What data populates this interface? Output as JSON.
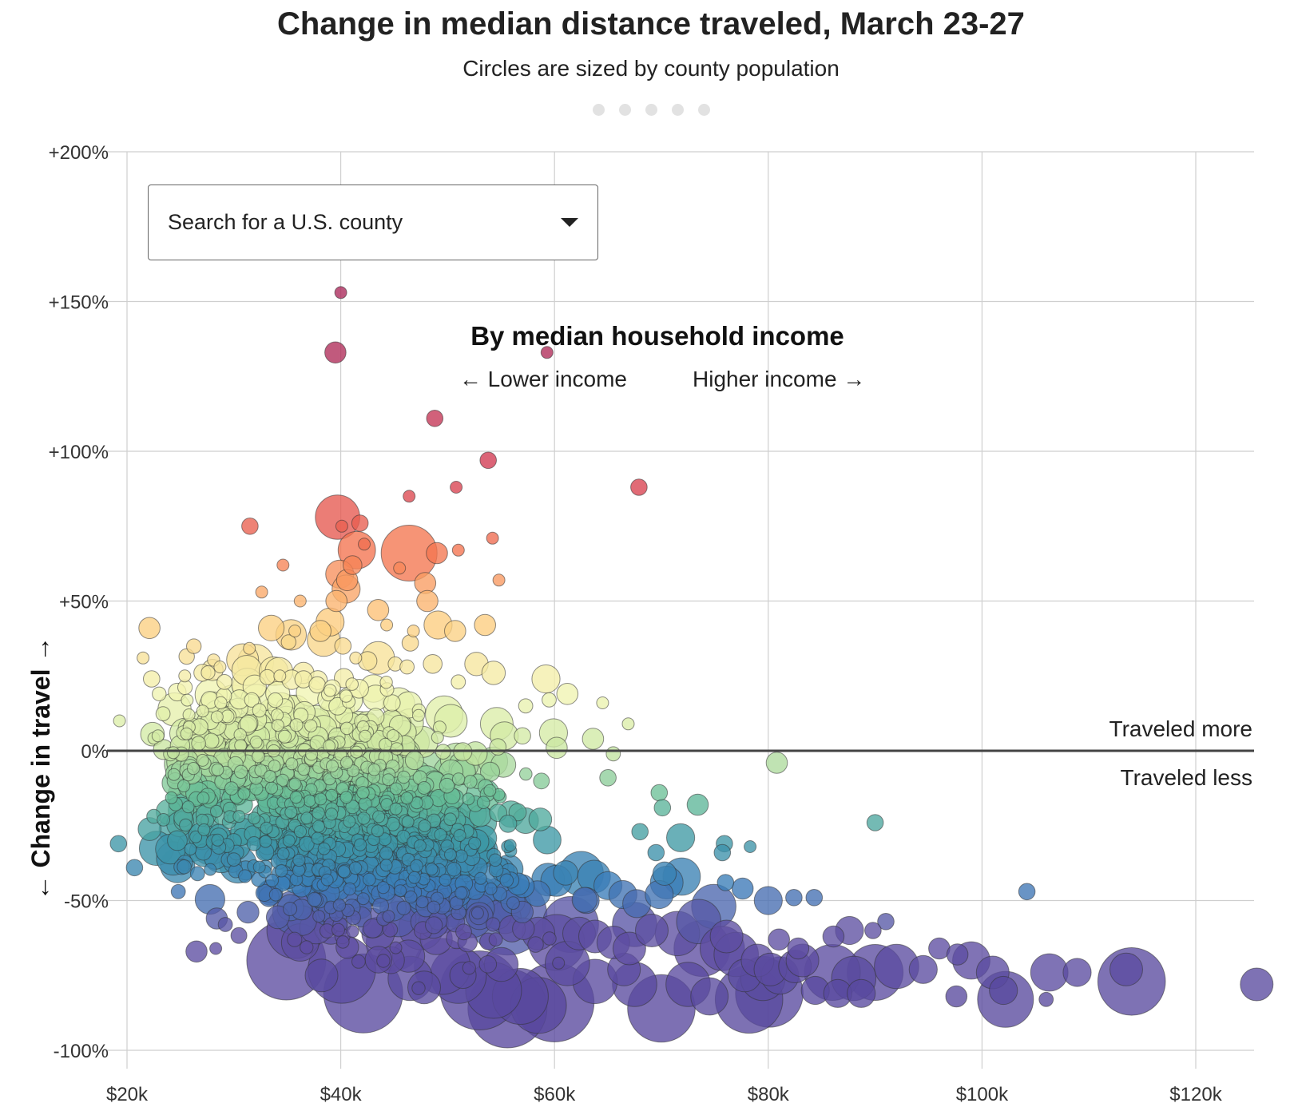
{
  "header": {
    "title": "Change in median distance traveled, March 23-27",
    "subtitle": "Circles are sized by county population",
    "pager_count": 5
  },
  "search": {
    "placeholder": "Search for a U.S. county"
  },
  "annotations": {
    "income_heading": "By median household income",
    "lower_income": "← Lower income",
    "higher_income": "Higher income →",
    "traveled_more": "Traveled more",
    "traveled_less": "Traveled less"
  },
  "chart_data": {
    "type": "scatter",
    "title": "Change in median distance traveled, March 23-27",
    "subtitle": "Circles are sized by county population",
    "xlabel": "",
    "ylabel": "← Change in travel →",
    "xlim": [
      19000,
      126000
    ],
    "ylim": [
      -105,
      200
    ],
    "x_ticks": [
      20000,
      40000,
      60000,
      80000,
      100000,
      120000
    ],
    "x_tick_labels": [
      "$20k",
      "$40k",
      "$60k",
      "$80k",
      "$100k",
      "$120k"
    ],
    "y_ticks": [
      200,
      150,
      100,
      50,
      0,
      -50,
      -100
    ],
    "y_tick_labels": [
      "+200%",
      "+150%",
      "+100%",
      "+50%",
      "0%",
      "-50%",
      "-100%"
    ],
    "grid": true,
    "size_encoding": "county population",
    "color_encoding": "change in travel (purple = less, red = more)",
    "points": [
      [
        40000,
        153,
        0.1
      ],
      [
        39500,
        133,
        0.5
      ],
      [
        59300,
        133,
        0.1
      ],
      [
        48800,
        111,
        0.3
      ],
      [
        53800,
        97,
        0.3
      ],
      [
        67900,
        88,
        0.3
      ],
      [
        50800,
        88,
        0.1
      ],
      [
        46400,
        85,
        0.1
      ],
      [
        39700,
        78,
        1.5
      ],
      [
        41800,
        76,
        0.3
      ],
      [
        31500,
        75,
        0.3
      ],
      [
        40100,
        75,
        0.1
      ],
      [
        54200,
        71,
        0.1
      ],
      [
        46400,
        66,
        2.0
      ],
      [
        41500,
        67,
        1.2
      ],
      [
        49000,
        66,
        0.5
      ],
      [
        51000,
        67,
        0.1
      ],
      [
        42200,
        69,
        0.1
      ],
      [
        41100,
        62,
        0.4
      ],
      [
        45500,
        61,
        0.1
      ],
      [
        39900,
        59,
        0.8
      ],
      [
        40600,
        57,
        0.5
      ],
      [
        34600,
        62,
        0.1
      ],
      [
        47900,
        56,
        0.5
      ],
      [
        54800,
        57,
        0.1
      ],
      [
        40500,
        54,
        0.8
      ],
      [
        32600,
        53,
        0.1
      ],
      [
        48100,
        50,
        0.5
      ],
      [
        39600,
        50,
        0.5
      ],
      [
        36200,
        50,
        0.1
      ],
      [
        43500,
        47,
        0.5
      ],
      [
        22100,
        41,
        0.5
      ],
      [
        33500,
        41,
        0.7
      ],
      [
        35700,
        40,
        0.1
      ],
      [
        39000,
        43,
        0.8
      ],
      [
        38100,
        40,
        0.5
      ],
      [
        44300,
        42,
        0.1
      ],
      [
        46800,
        40,
        0.1
      ],
      [
        49100,
        42,
        0.8
      ],
      [
        53500,
        42,
        0.5
      ],
      [
        50700,
        40,
        0.5
      ],
      [
        38400,
        37,
        1.0
      ],
      [
        40200,
        35,
        0.3
      ],
      [
        46500,
        36,
        0.3
      ],
      [
        21500,
        31,
        0.1
      ],
      [
        22300,
        24,
        0.3
      ],
      [
        25400,
        25,
        0.1
      ],
      [
        28000,
        27,
        0.5
      ],
      [
        28700,
        28,
        0.1
      ],
      [
        34300,
        25,
        0.1
      ],
      [
        41400,
        31,
        0.1
      ],
      [
        43500,
        31,
        1.0
      ],
      [
        42500,
        30,
        0.4
      ],
      [
        45100,
        29,
        0.2
      ],
      [
        46200,
        28,
        0.2
      ],
      [
        48600,
        29,
        0.4
      ],
      [
        52700,
        29,
        0.6
      ],
      [
        54300,
        26,
        0.6
      ],
      [
        59200,
        24,
        0.8
      ],
      [
        51000,
        23,
        0.2
      ],
      [
        36500,
        26,
        0.5
      ],
      [
        37800,
        22,
        0.3
      ],
      [
        39200,
        21,
        0.3
      ],
      [
        61200,
        19,
        0.5
      ],
      [
        64500,
        16,
        0.1
      ],
      [
        66900,
        9,
        0.1
      ],
      [
        59500,
        17,
        0.2
      ],
      [
        57300,
        15,
        0.2
      ],
      [
        44800,
        16,
        0.3
      ],
      [
        19300,
        10,
        0.1
      ],
      [
        22900,
        5,
        0.1
      ],
      [
        25800,
        12,
        0.1
      ],
      [
        26800,
        8,
        0.3
      ],
      [
        25300,
        6,
        0.2
      ],
      [
        50300,
        10,
        1.0
      ],
      [
        54600,
        9,
        1.0
      ],
      [
        55300,
        5,
        0.8
      ],
      [
        63600,
        4,
        0.5
      ],
      [
        57000,
        5,
        0.3
      ],
      [
        59900,
        6,
        0.8
      ],
      [
        60200,
        1,
        0.5
      ],
      [
        65500,
        -1,
        0.2
      ],
      [
        80800,
        -4,
        0.5
      ],
      [
        65000,
        -9,
        0.3
      ],
      [
        73400,
        -18,
        0.5
      ],
      [
        69800,
        -14,
        0.3
      ],
      [
        70100,
        -19,
        0.3
      ],
      [
        90000,
        -24,
        0.3
      ],
      [
        71800,
        -29,
        0.8
      ],
      [
        75900,
        -31,
        0.3
      ],
      [
        78300,
        -32,
        0.1
      ],
      [
        75700,
        -34,
        0.3
      ],
      [
        19200,
        -31,
        0.3
      ],
      [
        20700,
        -39,
        0.3
      ],
      [
        24800,
        -47,
        0.2
      ],
      [
        26600,
        -41,
        0.2
      ],
      [
        26500,
        -67,
        0.5
      ],
      [
        28300,
        -66,
        0.1
      ],
      [
        28400,
        -56,
        0.5
      ],
      [
        29200,
        -58,
        0.2
      ],
      [
        69500,
        -34,
        0.3
      ],
      [
        68000,
        -27,
        0.3
      ],
      [
        70300,
        -41,
        0.6
      ],
      [
        71900,
        -42,
        1.2
      ],
      [
        70500,
        -44,
        1.0
      ],
      [
        76000,
        -44,
        0.3
      ],
      [
        77600,
        -46,
        0.5
      ],
      [
        80000,
        -50,
        0.8
      ],
      [
        82400,
        -49,
        0.3
      ],
      [
        84300,
        -49,
        0.3
      ],
      [
        104200,
        -47,
        0.3
      ],
      [
        74900,
        -52,
        1.5
      ],
      [
        91000,
        -57,
        0.3
      ],
      [
        89800,
        -60,
        0.3
      ],
      [
        87600,
        -60,
        0.8
      ],
      [
        86100,
        -62,
        0.5
      ],
      [
        81000,
        -63,
        0.5
      ],
      [
        82800,
        -66,
        0.5
      ],
      [
        96000,
        -66,
        0.5
      ],
      [
        97700,
        -68,
        0.5
      ],
      [
        99000,
        -70,
        1.2
      ],
      [
        101000,
        -74,
        1.0
      ],
      [
        102000,
        -80,
        0.8
      ],
      [
        102200,
        -83,
        2.0
      ],
      [
        106000,
        -83,
        0.2
      ],
      [
        97600,
        -82,
        0.5
      ],
      [
        106300,
        -74,
        1.2
      ],
      [
        108900,
        -74,
        0.8
      ],
      [
        114000,
        -77,
        2.5
      ],
      [
        113500,
        -73,
        1.0
      ],
      [
        125700,
        -78,
        1.0
      ],
      [
        94500,
        -73,
        0.8
      ],
      [
        92000,
        -72,
        1.5
      ],
      [
        90000,
        -74,
        2.0
      ],
      [
        88000,
        -76,
        1.5
      ],
      [
        86000,
        -74,
        2.0
      ],
      [
        84400,
        -80,
        0.8
      ],
      [
        86500,
        -81,
        0.8
      ],
      [
        88700,
        -81,
        0.8
      ],
      [
        80100,
        -81,
        2.5
      ],
      [
        78200,
        -83,
        2.5
      ],
      [
        79500,
        -76,
        1.5
      ],
      [
        77800,
        -75,
        1.0
      ],
      [
        74500,
        -82,
        1.2
      ],
      [
        72500,
        -78,
        1.5
      ],
      [
        70000,
        -86,
        2.5
      ],
      [
        67500,
        -78,
        1.5
      ],
      [
        66500,
        -73,
        1.0
      ],
      [
        63800,
        -77,
        1.5
      ],
      [
        61200,
        -71,
        1.5
      ],
      [
        60000,
        -84,
        3.0
      ],
      [
        58500,
        -85,
        2.0
      ],
      [
        56800,
        -82,
        2.0
      ],
      [
        55600,
        -86,
        3.0
      ],
      [
        54300,
        -80,
        2.0
      ],
      [
        53000,
        -80,
        3.0
      ],
      [
        51000,
        -75,
        2.0
      ],
      [
        49500,
        -72,
        2.0
      ],
      [
        47800,
        -79,
        1.0
      ],
      [
        46500,
        -76,
        1.5
      ],
      [
        45000,
        -64,
        2.0
      ],
      [
        42100,
        -81,
        3.0
      ],
      [
        40100,
        -73,
        2.5
      ],
      [
        38200,
        -75,
        1.0
      ],
      [
        34900,
        -70,
        3.0
      ],
      [
        35700,
        -60,
        2.0
      ],
      [
        36200,
        -64,
        1.2
      ],
      [
        37700,
        -59,
        1.0
      ],
      [
        37100,
        -53,
        1.5
      ],
      [
        35700,
        -54,
        1.5
      ],
      [
        38900,
        -53,
        1.0
      ],
      [
        39700,
        -57,
        0.8
      ],
      [
        43500,
        -61,
        1.0
      ],
      [
        47500,
        -59,
        1.5
      ],
      [
        52200,
        -55,
        1.5
      ],
      [
        55600,
        -55,
        3.0
      ],
      [
        58500,
        -61,
        1.0
      ],
      [
        61500,
        -58,
        2.0
      ],
      [
        60200,
        -64,
        2.0
      ],
      [
        62300,
        -61,
        1.0
      ],
      [
        63800,
        -62,
        1.0
      ],
      [
        65500,
        -64,
        1.0
      ],
      [
        67500,
        -58,
        1.5
      ],
      [
        67000,
        -66,
        1.0
      ],
      [
        69100,
        -60,
        1.0
      ],
      [
        71500,
        -61,
        1.5
      ],
      [
        73500,
        -57,
        1.5
      ],
      [
        73800,
        -66,
        2.0
      ],
      [
        75700,
        -66,
        1.5
      ],
      [
        77000,
        -68,
        1.5
      ],
      [
        76100,
        -62,
        1.0
      ],
      [
        79000,
        -70,
        1.0
      ],
      [
        80200,
        -73,
        1.0
      ],
      [
        81100,
        -75,
        1.2
      ],
      [
        82500,
        -72,
        1.0
      ],
      [
        83200,
        -70,
        1.0
      ],
      [
        59400,
        -43,
        1.0
      ],
      [
        62500,
        -41,
        1.5
      ],
      [
        63700,
        -42,
        1.0
      ],
      [
        65000,
        -45,
        0.8
      ],
      [
        66400,
        -48,
        0.8
      ],
      [
        67700,
        -51,
        0.8
      ],
      [
        69800,
        -48,
        0.8
      ]
    ]
  }
}
